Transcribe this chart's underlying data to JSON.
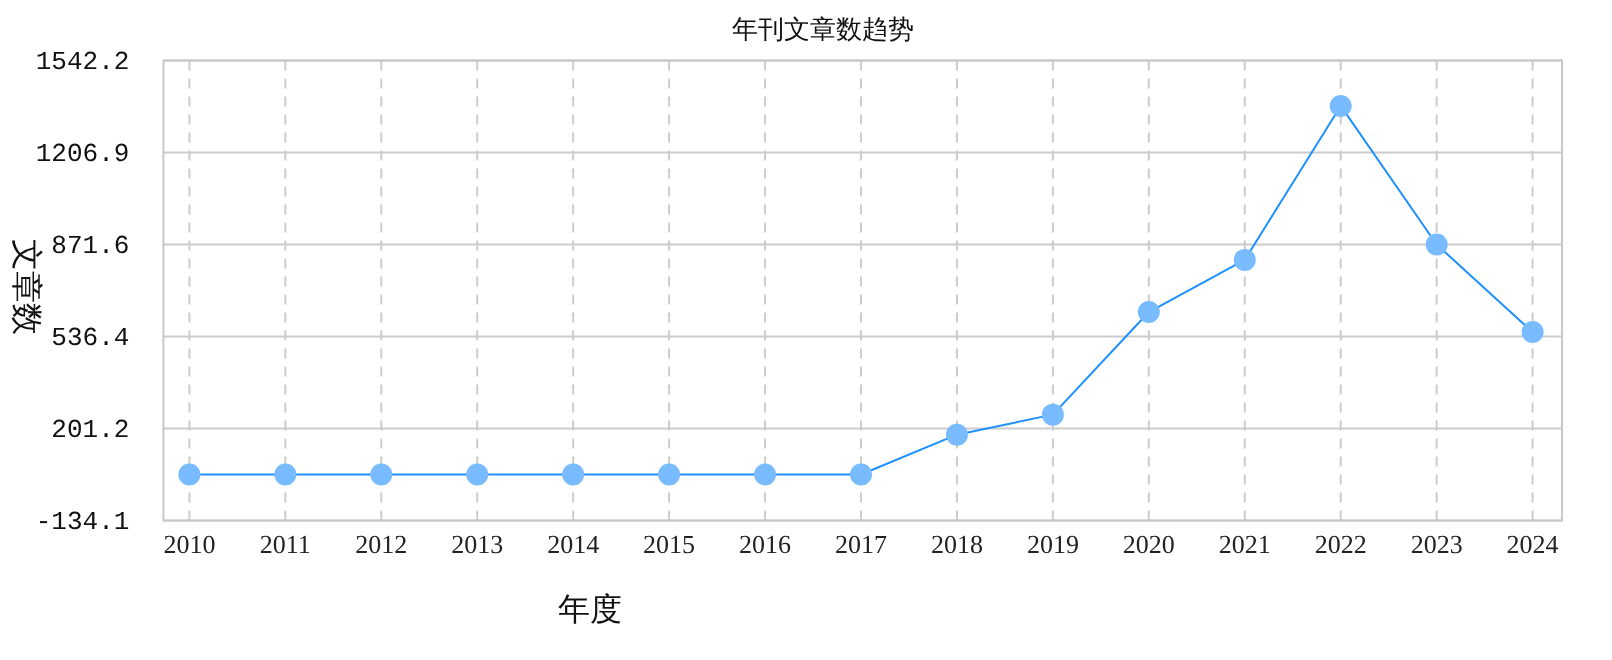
{
  "chart_data": {
    "type": "line",
    "title": "年刊文章数趋势",
    "xlabel": "年度",
    "ylabel": "文章数",
    "categories": [
      "2010",
      "2011",
      "2012",
      "2013",
      "2014",
      "2015",
      "2016",
      "2017",
      "2018",
      "2019",
      "2020",
      "2021",
      "2022",
      "2023",
      "2024"
    ],
    "series": [
      {
        "color": "#1e90ff",
        "values": [
          34,
          34,
          34,
          34,
          34,
          34,
          34,
          34,
          179,
          252,
          626,
          816,
          1377,
          872,
          553
        ]
      }
    ],
    "ylim": [
      -134.1,
      1542.2
    ],
    "yticks": [
      -134.1,
      201.2,
      536.4,
      871.6,
      1206.9,
      1542.2
    ],
    "grid": true,
    "marker": "circle",
    "line_style": "solid"
  }
}
